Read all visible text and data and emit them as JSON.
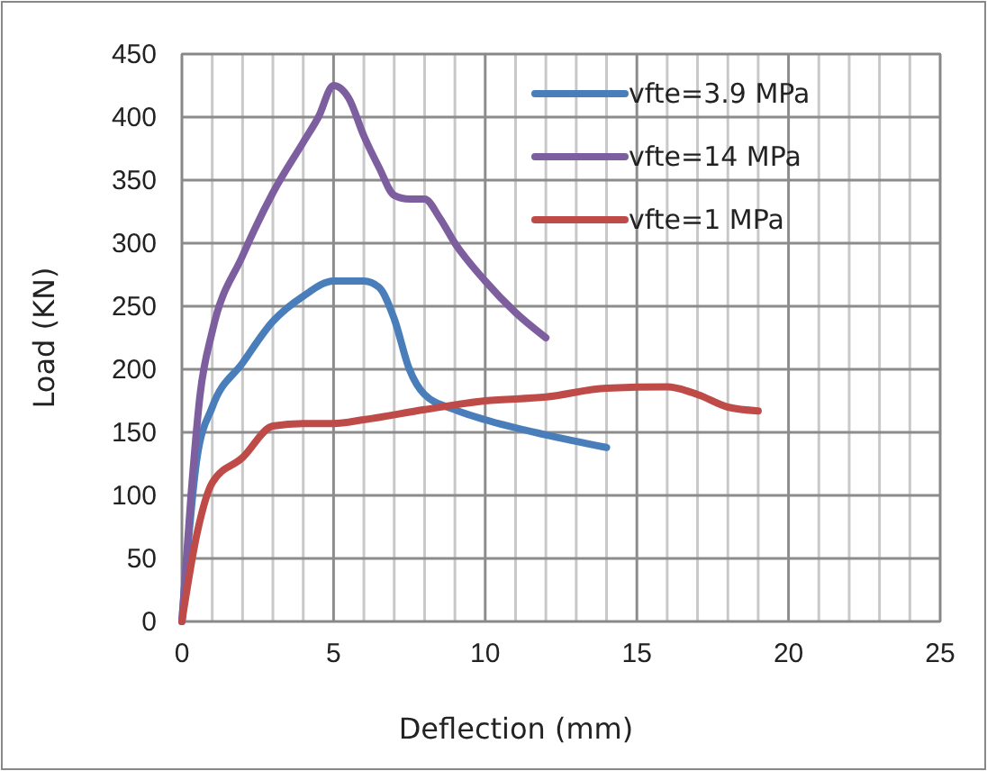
{
  "chart_data": {
    "type": "line",
    "xlabel": "Deflection (mm)",
    "ylabel": "Load (KN)",
    "xlim": [
      0,
      25
    ],
    "ylim": [
      0,
      450
    ],
    "xticks": [
      0,
      {
        "value": 1,
        "label": null
      },
      {
        "value": 2,
        "label": null
      },
      {
        "value": 3,
        "label": null
      },
      {
        "value": 4,
        "label": null
      },
      5,
      {
        "value": 6,
        "label": null
      },
      {
        "value": 7,
        "label": null
      },
      {
        "value": 8,
        "label": null
      },
      {
        "value": 9,
        "label": null
      },
      10,
      {
        "value": 11,
        "label": null
      },
      {
        "value": 12,
        "label": null
      },
      {
        "value": 13,
        "label": null
      },
      {
        "value": 14,
        "label": null
      },
      15,
      {
        "value": 16,
        "label": null
      },
      {
        "value": 17,
        "label": null
      },
      {
        "value": 18,
        "label": null
      },
      {
        "value": 19,
        "label": null
      },
      20,
      {
        "value": 21,
        "label": null
      },
      {
        "value": 22,
        "label": null
      },
      {
        "value": 23,
        "label": null
      },
      {
        "value": 24,
        "label": null
      },
      25
    ],
    "yticks": [
      0,
      50,
      100,
      150,
      200,
      250,
      300,
      350,
      400,
      450
    ],
    "grid": true,
    "legend": "top right",
    "marker": "none",
    "line_style": "solid",
    "series": [
      {
        "name": "vfte=3.9 MPa",
        "color": "#4a7ebb",
        "x": [
          0,
          0.5,
          1,
          2,
          3,
          4,
          5,
          6,
          6.5,
          7,
          7.5,
          8,
          9,
          10,
          12,
          14
        ],
        "values": [
          0,
          130,
          170,
          205,
          238,
          258,
          270,
          270,
          265,
          240,
          200,
          180,
          168,
          160,
          148,
          138
        ]
      },
      {
        "name": "vfte=14 MPa",
        "color": "#7d5fa0",
        "x": [
          0,
          0.3,
          0.6,
          1,
          2,
          3,
          4,
          4.5,
          5,
          5.5,
          6,
          6.5,
          7,
          7.5,
          8,
          8.5,
          9,
          10,
          11,
          12
        ],
        "values": [
          0,
          100,
          180,
          230,
          290,
          340,
          380,
          400,
          425,
          415,
          385,
          360,
          338,
          335,
          335,
          320,
          300,
          270,
          245,
          225
        ]
      },
      {
        "name": "vfte=1 MPa",
        "color": "#be4b48",
        "x": [
          0,
          0.5,
          1,
          2,
          3,
          4,
          5,
          6,
          8,
          10,
          12,
          14,
          16,
          17,
          18,
          19
        ],
        "values": [
          0,
          70,
          110,
          130,
          155,
          157,
          157,
          160,
          168,
          175,
          178,
          185,
          186,
          180,
          170,
          167
        ]
      }
    ]
  }
}
